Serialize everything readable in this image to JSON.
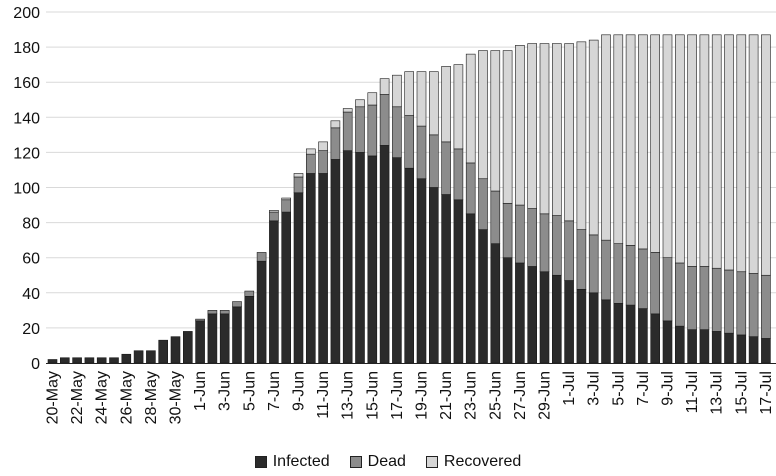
{
  "chart_data": {
    "type": "bar",
    "stacked": true,
    "ylim": [
      0,
      200
    ],
    "yticks": [
      0,
      20,
      40,
      60,
      80,
      100,
      120,
      140,
      160,
      180,
      200
    ],
    "grid": true,
    "legend_position": "bottom-center",
    "categories": [
      "20-May",
      "21-May",
      "22-May",
      "23-May",
      "24-May",
      "25-May",
      "26-May",
      "27-May",
      "28-May",
      "29-May",
      "30-May",
      "31-May",
      "1-Jun",
      "2-Jun",
      "3-Jun",
      "4-Jun",
      "5-Jun",
      "6-Jun",
      "7-Jun",
      "8-Jun",
      "9-Jun",
      "10-Jun",
      "11-Jun",
      "12-Jun",
      "13-Jun",
      "14-Jun",
      "15-Jun",
      "16-Jun",
      "17-Jun",
      "18-Jun",
      "19-Jun",
      "20-Jun",
      "21-Jun",
      "22-Jun",
      "23-Jun",
      "24-Jun",
      "25-Jun",
      "26-Jun",
      "27-Jun",
      "28-Jun",
      "29-Jun",
      "30-Jun",
      "1-Jul",
      "2-Jul",
      "3-Jul",
      "4-Jul",
      "5-Jul",
      "6-Jul",
      "7-Jul",
      "8-Jul",
      "9-Jul",
      "10-Jul",
      "11-Jul",
      "12-Jul",
      "13-Jul",
      "14-Jul",
      "15-Jul",
      "16-Jul",
      "17-Jul"
    ],
    "tick_labels": [
      "20-May",
      "22-May",
      "24-May",
      "26-May",
      "28-May",
      "30-May",
      "1-Jun",
      "3-Jun",
      "5-Jun",
      "7-Jun",
      "9-Jun",
      "11-Jun",
      "13-Jun",
      "15-Jun",
      "17-Jun",
      "19-Jun",
      "21-Jun",
      "23-Jun",
      "25-Jun",
      "27-Jun",
      "29-Jun",
      "1-Jul",
      "3-Jul",
      "5-Jul",
      "7-Jul",
      "9-Jul",
      "11-Jul",
      "13-Jul",
      "15-Jul",
      "17-Jul"
    ],
    "series": [
      {
        "name": "Infected",
        "color": "#2b2b2b",
        "values": [
          2,
          3,
          3,
          3,
          3,
          3,
          5,
          7,
          7,
          13,
          15,
          18,
          24,
          28,
          28,
          32,
          38,
          58,
          81,
          86,
          97,
          108,
          108,
          116,
          121,
          120,
          118,
          124,
          117,
          111,
          105,
          100,
          96,
          93,
          85,
          76,
          68,
          60,
          57,
          55,
          52,
          50,
          47,
          42,
          40,
          36,
          34,
          33,
          31,
          28,
          24,
          21,
          19,
          19,
          18,
          17,
          16,
          15,
          14
        ]
      },
      {
        "name": "Dead",
        "color": "#8c8c8c",
        "values": [
          0,
          0,
          0,
          0,
          0,
          0,
          0,
          0,
          0,
          0,
          0,
          0,
          1,
          2,
          2,
          3,
          3,
          5,
          5,
          7,
          9,
          11,
          13,
          18,
          22,
          26,
          29,
          29,
          29,
          30,
          30,
          30,
          30,
          29,
          29,
          29,
          30,
          31,
          33,
          33,
          33,
          34,
          34,
          34,
          33,
          34,
          34,
          34,
          34,
          35,
          36,
          36,
          36,
          36,
          36,
          36,
          36,
          36,
          36
        ]
      },
      {
        "name": "Recovered",
        "color": "#d6d6d6",
        "values": [
          0,
          0,
          0,
          0,
          0,
          0,
          0,
          0,
          0,
          0,
          0,
          0,
          0,
          0,
          0,
          0,
          0,
          0,
          1,
          1,
          2,
          3,
          5,
          4,
          2,
          4,
          7,
          9,
          18,
          25,
          31,
          36,
          43,
          48,
          62,
          73,
          80,
          87,
          91,
          94,
          97,
          98,
          101,
          107,
          111,
          117,
          119,
          120,
          122,
          124,
          127,
          130,
          132,
          132,
          133,
          134,
          135,
          136,
          137
        ]
      }
    ]
  }
}
